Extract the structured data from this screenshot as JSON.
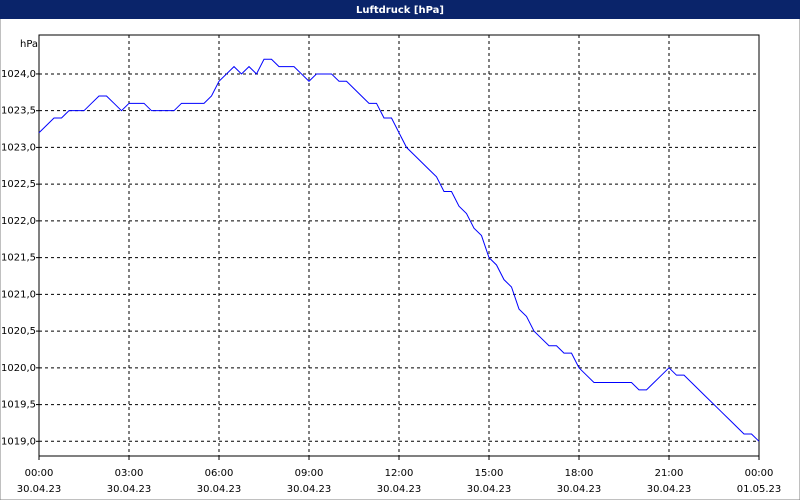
{
  "chart_data": {
    "type": "line",
    "title": "Luftdruck [hPa]",
    "y_label": "hPa",
    "x": [
      0,
      0.25,
      0.5,
      0.75,
      1,
      1.25,
      1.5,
      1.75,
      2,
      2.25,
      2.5,
      2.75,
      3,
      3.25,
      3.5,
      3.75,
      4,
      4.25,
      4.5,
      4.75,
      5,
      5.25,
      5.5,
      5.75,
      6,
      6.25,
      6.5,
      6.75,
      7,
      7.25,
      7.5,
      7.75,
      8,
      8.25,
      8.5,
      8.75,
      9,
      9.25,
      9.5,
      9.75,
      10,
      10.25,
      10.5,
      10.75,
      11,
      11.25,
      11.5,
      11.75,
      12,
      12.25,
      12.5,
      12.75,
      13,
      13.25,
      13.5,
      13.75,
      14,
      14.25,
      14.5,
      14.75,
      15,
      15.25,
      15.5,
      15.75,
      16,
      16.25,
      16.5,
      16.75,
      17,
      17.25,
      17.5,
      17.75,
      18,
      18.25,
      18.5,
      18.75,
      19,
      19.25,
      19.5,
      19.75,
      20,
      20.25,
      20.5,
      20.75,
      21,
      21.25,
      21.5,
      21.75,
      22,
      22.25,
      22.5,
      22.75,
      23,
      23.25,
      23.5,
      23.75,
      24
    ],
    "series": [
      {
        "name": "Luftdruck",
        "color": "#0000ff",
        "values": [
          1023.2,
          1023.3,
          1023.4,
          1023.4,
          1023.5,
          1023.5,
          1023.5,
          1023.6,
          1023.7,
          1023.7,
          1023.6,
          1023.5,
          1023.6,
          1023.6,
          1023.6,
          1023.5,
          1023.5,
          1023.5,
          1023.5,
          1023.6,
          1023.6,
          1023.6,
          1023.6,
          1023.7,
          1023.9,
          1024.0,
          1024.1,
          1024.0,
          1024.1,
          1024.0,
          1024.2,
          1024.2,
          1024.1,
          1024.1,
          1024.1,
          1024.0,
          1023.9,
          1024.0,
          1024.0,
          1024.0,
          1023.9,
          1023.9,
          1023.8,
          1023.7,
          1023.6,
          1023.6,
          1023.4,
          1023.4,
          1023.2,
          1023.0,
          1022.9,
          1022.8,
          1022.7,
          1022.6,
          1022.4,
          1022.4,
          1022.2,
          1022.1,
          1021.9,
          1021.8,
          1021.5,
          1021.4,
          1021.2,
          1021.1,
          1020.8,
          1020.7,
          1020.5,
          1020.4,
          1020.3,
          1020.3,
          1020.2,
          1020.2,
          1020.0,
          1019.9,
          1019.8,
          1019.8,
          1019.8,
          1019.8,
          1019.8,
          1019.8,
          1019.7,
          1019.7,
          1019.8,
          1019.9,
          1020.0,
          1019.9,
          1019.9,
          1019.8,
          1019.7,
          1019.6,
          1019.5,
          1019.4,
          1019.3,
          1019.2,
          1019.1,
          1019.1,
          1019.0
        ]
      }
    ],
    "xlim": [
      0,
      24
    ],
    "xticks": [
      {
        "value": 0,
        "label": "00:00"
      },
      {
        "value": 3,
        "label": "03:00"
      },
      {
        "value": 6,
        "label": "06:00"
      },
      {
        "value": 9,
        "label": "09:00"
      },
      {
        "value": 12,
        "label": "12:00"
      },
      {
        "value": 15,
        "label": "15:00"
      },
      {
        "value": 18,
        "label": "18:00"
      },
      {
        "value": 21,
        "label": "21:00"
      },
      {
        "value": 24,
        "label": "00:00"
      }
    ],
    "xtick_dates": [
      "30.04.23",
      "30.04.23",
      "30.04.23",
      "30.04.23",
      "30.04.23",
      "30.04.23",
      "30.04.23",
      "30.04.23",
      "01.05.23"
    ],
    "ylim": [
      1018.8,
      1024.53
    ],
    "yticks": [
      {
        "value": 1019,
        "label": "1019,0"
      },
      {
        "value": 1019.5,
        "label": "1019,5"
      },
      {
        "value": 1020,
        "label": "1020,0"
      },
      {
        "value": 1020.5,
        "label": "1020,5"
      },
      {
        "value": 1021,
        "label": "1021,0"
      },
      {
        "value": 1021.5,
        "label": "1021,5"
      },
      {
        "value": 1022,
        "label": "1022,0"
      },
      {
        "value": 1022.5,
        "label": "1022,5"
      },
      {
        "value": 1023,
        "label": "1023,0"
      },
      {
        "value": 1023.5,
        "label": "1023,5"
      },
      {
        "value": 1024,
        "label": "1024,0"
      }
    ],
    "grid": true
  }
}
